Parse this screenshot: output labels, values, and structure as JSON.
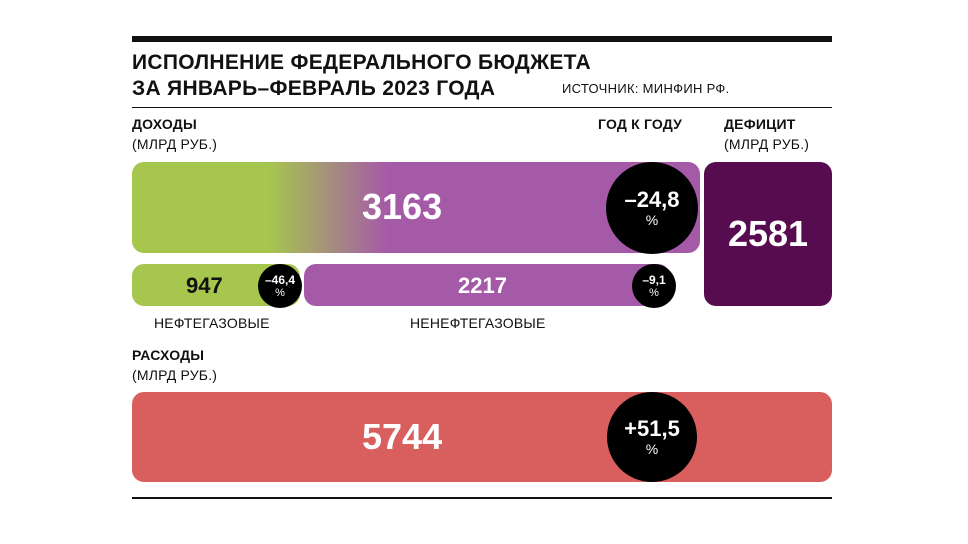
{
  "header": {
    "title_line1": "ИСПОЛНЕНИЕ ФЕДЕРАЛЬНОГО БЮДЖЕТА",
    "title_line2": "ЗА ЯНВАРЬ–ФЕВРАЛЬ 2023 ГОДА",
    "source": "ИСТОЧНИК:  МИНФИН РФ."
  },
  "labels": {
    "income": "ДОХОДЫ",
    "income_unit": "(МЛРД РУБ.)",
    "yoy": "ГОД К ГОДУ",
    "deficit": "ДЕФИЦИТ",
    "deficit_unit": "(МЛРД РУБ.)",
    "oil_gas": "НЕФТЕГАЗОВЫЕ",
    "non_oil_gas": "НЕНЕФТЕГАЗОВЫЕ",
    "expenses": "РАСХОДЫ",
    "expenses_unit": "(МЛРД РУБ.)",
    "percent_sign": "%"
  },
  "chart_data": {
    "type": "bar",
    "unit": "МЛРД РУБ.",
    "income": {
      "value": 3163,
      "value_label": "3163",
      "yoy": -24.8,
      "yoy_label": "–24,8"
    },
    "oil_gas_income": {
      "value": 947,
      "value_label": "947",
      "yoy": -46.4,
      "yoy_label": "–46,4"
    },
    "non_oil_gas_income": {
      "value": 2217,
      "value_label": "2217",
      "yoy": -9.1,
      "yoy_label": "–9,1"
    },
    "deficit": {
      "value": 2581,
      "value_label": "2581"
    },
    "expenses": {
      "value": 5744,
      "value_label": "5744",
      "yoy": 51.5,
      "yoy_label": "+51,5"
    }
  },
  "colors": {
    "oil_gas": "#a6c64e",
    "non_oil_gas": "#a55aa8",
    "deficit": "#560c4e",
    "expenses": "#d95e5e",
    "badge": "#000000"
  }
}
